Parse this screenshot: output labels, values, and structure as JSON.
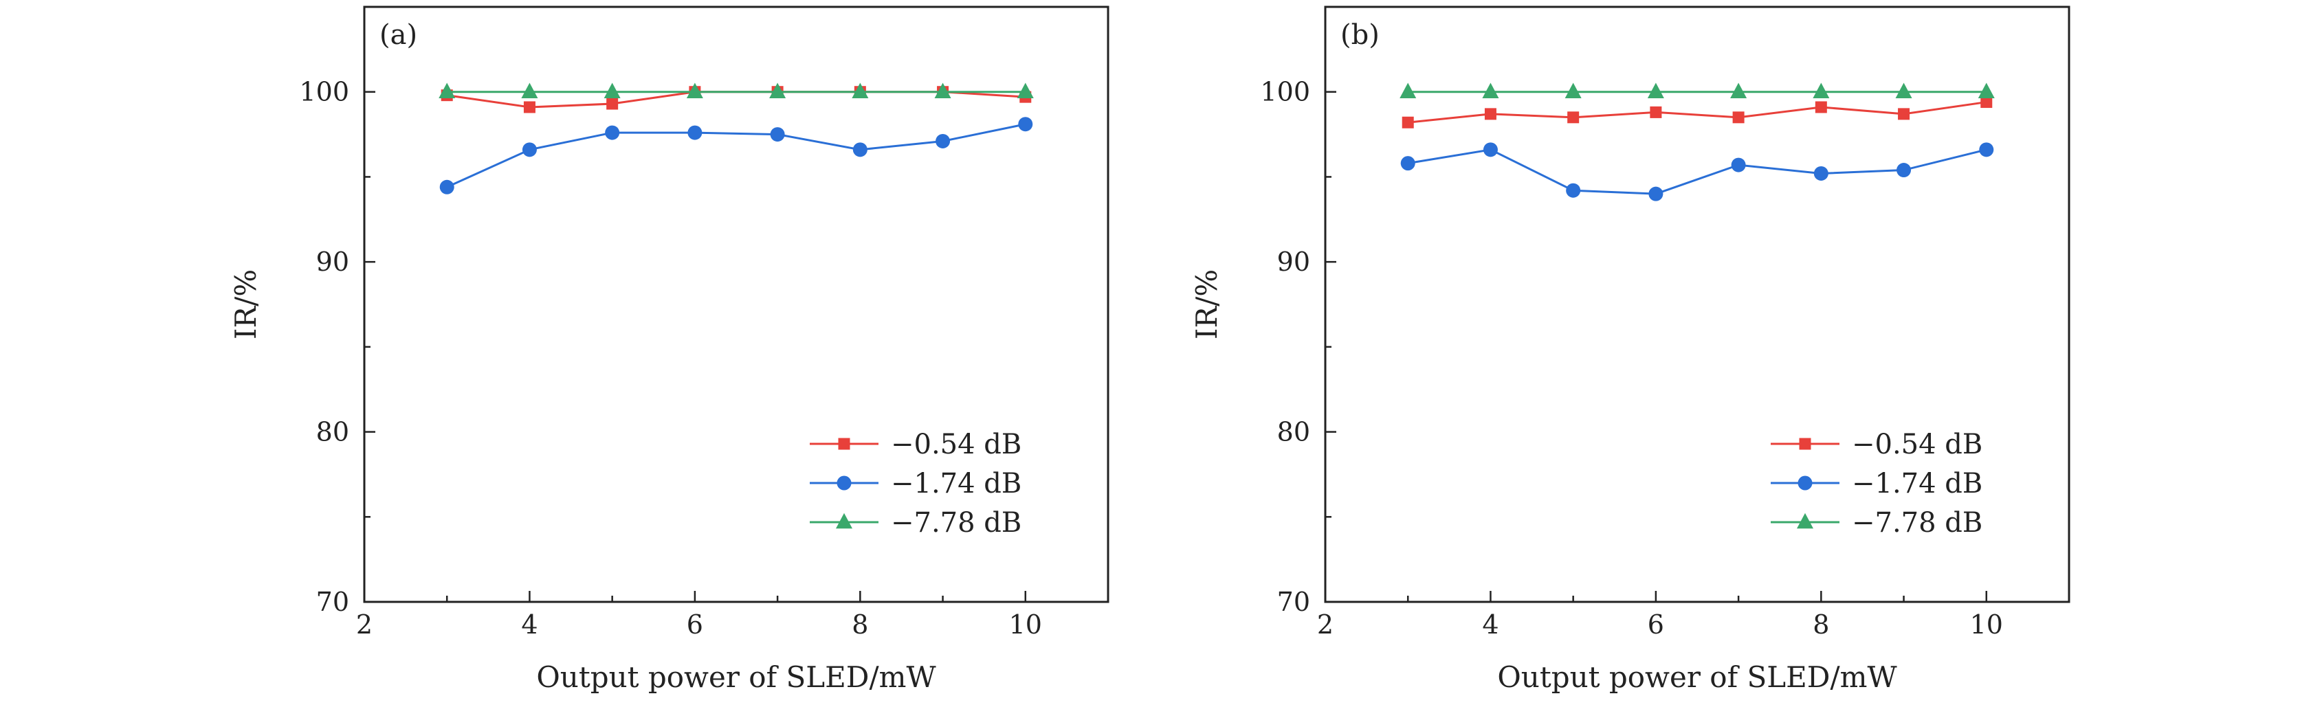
{
  "chart_data": [
    {
      "type": "line",
      "panel_label": "(a)",
      "xlabel": "Output power of SLED/mW",
      "ylabel": "IR/%",
      "xlim": [
        2,
        11
      ],
      "ylim": [
        70,
        105
      ],
      "xticks": [
        2,
        4,
        6,
        8,
        10
      ],
      "yticks": [
        70,
        80,
        90,
        100
      ],
      "x": [
        3,
        4,
        5,
        6,
        7,
        8,
        9,
        10
      ],
      "legend_position": "lower-right",
      "series": [
        {
          "name": "−0.54 dB",
          "color": "#e8403a",
          "marker": "square",
          "values": [
            99.8,
            99.1,
            99.3,
            100.0,
            100.0,
            100.0,
            100.0,
            99.7
          ]
        },
        {
          "name": "−1.74 dB",
          "color": "#2a6fd6",
          "marker": "circle",
          "values": [
            94.4,
            96.6,
            97.6,
            97.6,
            97.5,
            96.6,
            97.1,
            98.1
          ]
        },
        {
          "name": "−7.78 dB",
          "color": "#3aa86b",
          "marker": "triangle",
          "values": [
            100.0,
            100.0,
            100.0,
            100.0,
            100.0,
            100.0,
            100.0,
            100.0
          ]
        }
      ]
    },
    {
      "type": "line",
      "panel_label": "(b)",
      "xlabel": "Output power of SLED/mW",
      "ylabel": "IR/%",
      "xlim": [
        2,
        11
      ],
      "ylim": [
        70,
        105
      ],
      "xticks": [
        2,
        4,
        6,
        8,
        10
      ],
      "yticks": [
        70,
        80,
        90,
        100
      ],
      "x": [
        3,
        4,
        5,
        6,
        7,
        8,
        9,
        10
      ],
      "legend_position": "lower-right",
      "series": [
        {
          "name": "−0.54 dB",
          "color": "#e8403a",
          "marker": "square",
          "values": [
            98.2,
            98.7,
            98.5,
            98.8,
            98.5,
            99.1,
            98.7,
            99.4
          ]
        },
        {
          "name": "−1.74 dB",
          "color": "#2a6fd6",
          "marker": "circle",
          "values": [
            95.8,
            96.6,
            94.2,
            94.0,
            95.7,
            95.2,
            95.4,
            96.6
          ]
        },
        {
          "name": "−7.78 dB",
          "color": "#3aa86b",
          "marker": "triangle",
          "values": [
            100.0,
            100.0,
            100.0,
            100.0,
            100.0,
            100.0,
            100.0,
            100.0
          ]
        }
      ]
    }
  ]
}
